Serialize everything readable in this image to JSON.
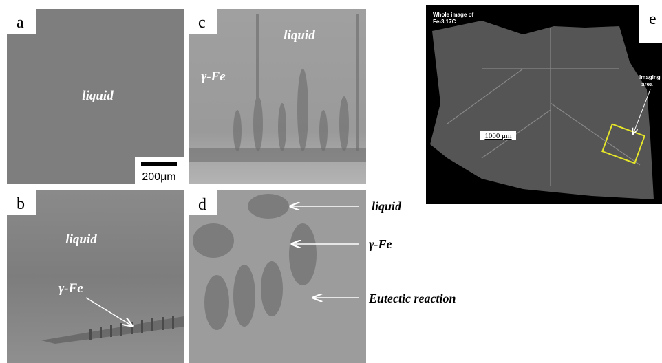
{
  "panels": {
    "a": {
      "label": "a",
      "text": "liquid",
      "scale_bar": "200μm"
    },
    "b": {
      "label": "b",
      "liquid": "liquid",
      "phase": "γ-Fe"
    },
    "c": {
      "label": "c",
      "liquid": "liquid",
      "phase": "γ-Fe"
    },
    "d": {
      "label": "d",
      "arrows": [
        "liquid",
        "γ-Fe",
        "Eutectic reaction"
      ]
    },
    "e": {
      "label": "e",
      "title_lines": [
        "Whole image of",
        "Fe-3.17C"
      ],
      "scale_bar": "1000 μm",
      "box_label_lines": [
        "Imaging",
        "area"
      ]
    }
  }
}
